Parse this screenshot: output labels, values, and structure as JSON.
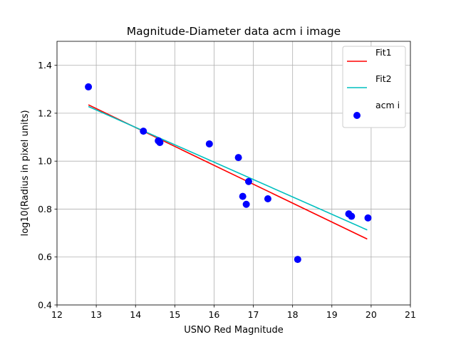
{
  "chart_data": {
    "type": "scatter",
    "title": "Magnitude-Diameter data acm i image",
    "xlabel": "USNO Red Magnitude",
    "ylabel": "log10(Radius in pixel units)",
    "xlim": [
      12,
      21
    ],
    "ylim": [
      0.4,
      1.5
    ],
    "xticks": [
      "12",
      "13",
      "14",
      "15",
      "16",
      "17",
      "18",
      "19",
      "20",
      "21"
    ],
    "yticks": [
      "0.4",
      "0.6",
      "0.8",
      "1.0",
      "1.2",
      "1.4"
    ],
    "grid": true,
    "legend_placement": "top-right",
    "series": [
      {
        "name": "Fit1",
        "kind": "line",
        "color": "#ff0000",
        "points": [
          [
            12.8,
            1.235
          ],
          [
            19.9,
            0.675
          ]
        ]
      },
      {
        "name": "Fit2",
        "kind": "line",
        "color": "#00bfbf",
        "points": [
          [
            12.8,
            1.228
          ],
          [
            19.9,
            0.713
          ]
        ]
      },
      {
        "name": "acm i",
        "kind": "scatter",
        "color": "#0000ff",
        "points": [
          [
            12.8,
            1.31
          ],
          [
            14.2,
            1.125
          ],
          [
            14.58,
            1.085
          ],
          [
            14.62,
            1.078
          ],
          [
            15.88,
            1.072
          ],
          [
            16.62,
            1.015
          ],
          [
            16.73,
            0.853
          ],
          [
            16.82,
            0.82
          ],
          [
            16.88,
            0.915
          ],
          [
            17.37,
            0.843
          ],
          [
            18.13,
            0.59
          ],
          [
            19.43,
            0.78
          ],
          [
            19.5,
            0.77
          ],
          [
            19.92,
            0.763
          ]
        ]
      }
    ]
  }
}
